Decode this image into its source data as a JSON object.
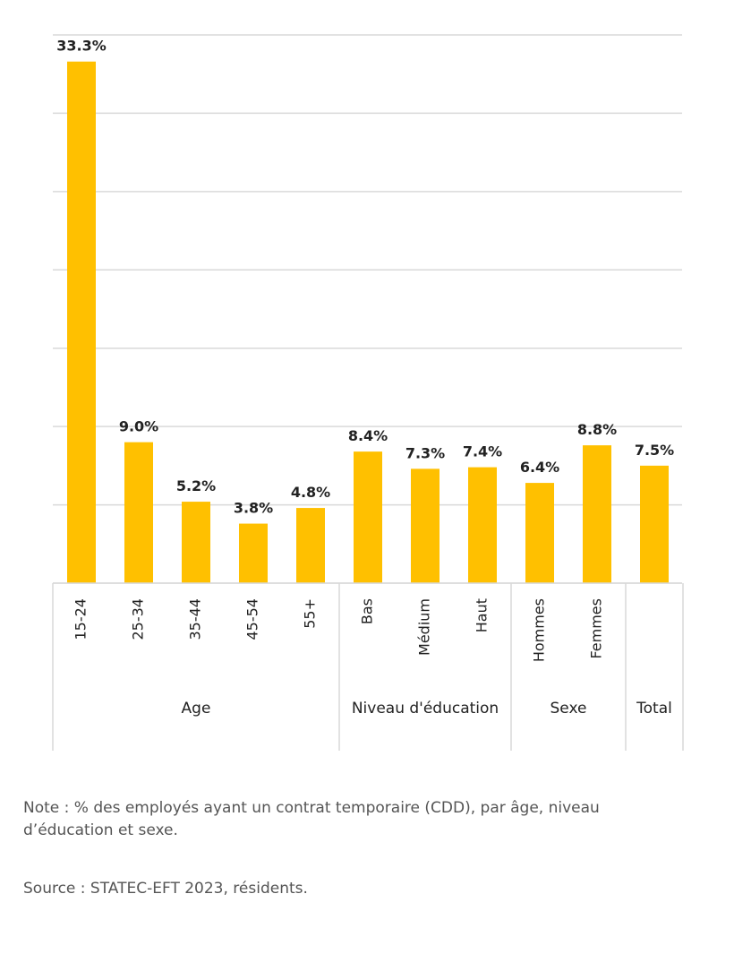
{
  "chart_data": {
    "type": "bar",
    "color": "#ffc000",
    "grid": true,
    "ylim": [
      0,
      35
    ],
    "yticks": [
      0,
      5,
      10,
      15,
      20,
      25,
      30,
      35
    ],
    "groups": [
      {
        "label": "Age",
        "categories": [
          "15-24",
          "25-34",
          "35-44",
          "45-54",
          "55+"
        ],
        "values": [
          33.3,
          9.0,
          5.2,
          3.8,
          4.8
        ],
        "value_labels": [
          "33.3%",
          "9.0%",
          "5.2%",
          "3.8%",
          "4.8%"
        ]
      },
      {
        "label": "Niveau d'éducation",
        "categories": [
          "Bas",
          "Médium",
          "Haut"
        ],
        "values": [
          8.4,
          7.3,
          7.4
        ],
        "value_labels": [
          "8.4%",
          "7.3%",
          "7.4%"
        ]
      },
      {
        "label": "Sexe",
        "categories": [
          "Hommes",
          "Femmes"
        ],
        "values": [
          6.4,
          8.8
        ],
        "value_labels": [
          "6.4%",
          "8.8%"
        ]
      },
      {
        "label": "Total",
        "categories": [
          ""
        ],
        "values": [
          7.5
        ],
        "value_labels": [
          "7.5%"
        ]
      }
    ]
  },
  "note": "Note : % des employés ayant un contrat temporaire (CDD), par âge, niveau d’éducation et sexe.",
  "source": "Source : STATEC-EFT 2023, résidents."
}
